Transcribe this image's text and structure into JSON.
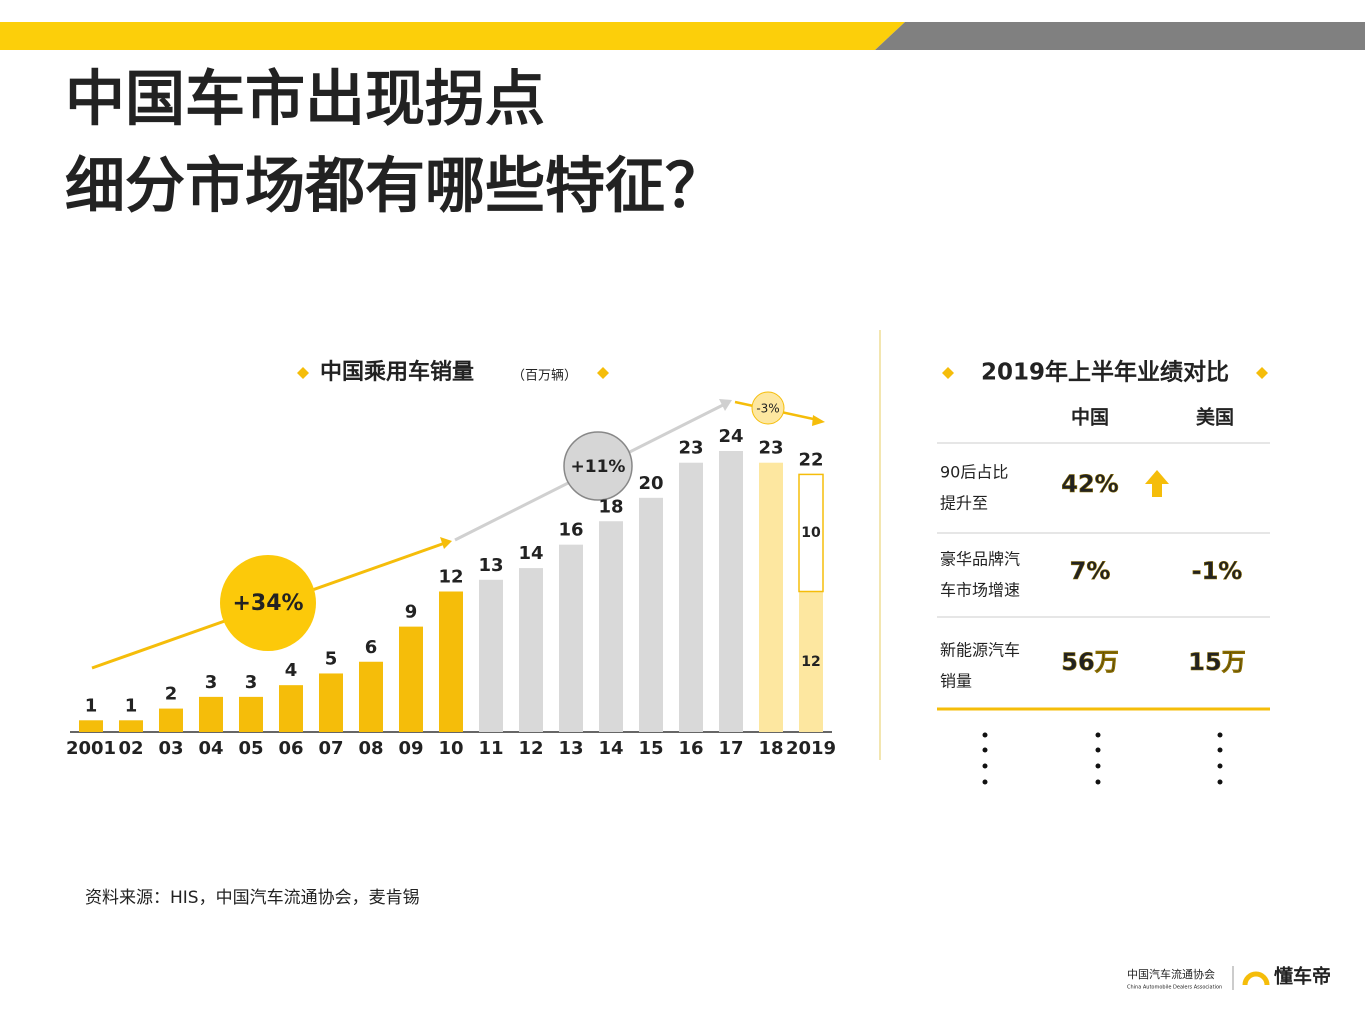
{
  "header": {
    "title_lines": [
      "中国车市出现拐点",
      "细分市场都有哪些特征？"
    ]
  },
  "chart_data": {
    "type": "bar",
    "title": "中国乘用车销量",
    "unit": "（百万辆）",
    "categories": [
      "2001",
      "02",
      "03",
      "04",
      "05",
      "06",
      "07",
      "08",
      "09",
      "10",
      "11",
      "12",
      "13",
      "14",
      "15",
      "16",
      "17",
      "18",
      "2019"
    ],
    "values": [
      1,
      1,
      2,
      3,
      3,
      4,
      5,
      6,
      9,
      12,
      13,
      14,
      16,
      18,
      20,
      23,
      24,
      23,
      22
    ],
    "colors": [
      "#f5bd0a",
      "#f5bd0a",
      "#f5bd0a",
      "#f5bd0a",
      "#f5bd0a",
      "#f5bd0a",
      "#f5bd0a",
      "#f5bd0a",
      "#f5bd0a",
      "#f5bd0a",
      "#d9d9d9",
      "#d9d9d9",
      "#d9d9d9",
      "#d9d9d9",
      "#d9d9d9",
      "#d9d9d9",
      "#d9d9d9",
      "#fde7a0",
      "#fde7a0"
    ],
    "last_bar_breakdown": [
      12,
      10
    ],
    "annotations": [
      "+34%",
      "+11%",
      "-3%"
    ]
  },
  "table": {
    "title": "2019年上半年业绩对比",
    "columns": [
      "中国",
      "美国"
    ],
    "rows": [
      {
        "label": [
          "90后占比",
          "提升至"
        ],
        "cells": [
          "42%"
        ]
      },
      {
        "label": [
          "豪华品牌汽",
          "车市场增速"
        ],
        "cells": [
          "7%",
          "-1%"
        ]
      },
      {
        "label": [
          "新能源汽车",
          "销量"
        ],
        "cells": [
          "56万",
          "15万"
        ]
      }
    ]
  },
  "source": "资料来源：HIS，中国汽车流通协会，麦肯锡",
  "footer": {
    "association": "中国汽车流通协会",
    "association_en": "China Automobile Dealers Association",
    "brand": "懂车帝"
  }
}
